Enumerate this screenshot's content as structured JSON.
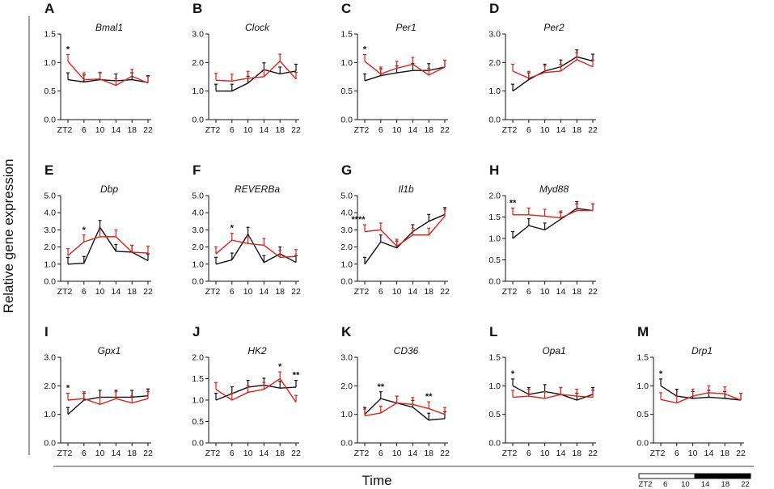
{
  "figure": {
    "ylabel": "Relative gene expression",
    "xlabel": "Time",
    "series_colors": {
      "black": "#111111",
      "red": "#e0201b"
    },
    "light_dark_bar": {
      "labels": [
        "ZT2",
        "6",
        "10",
        "14",
        "18",
        "22"
      ],
      "light_fraction": 0.5
    }
  },
  "chart_data": [
    {
      "letter": "A",
      "title": "Bmal1",
      "type": "line",
      "x": [
        2,
        6,
        10,
        14,
        18,
        22
      ],
      "xticks": [
        "ZT2",
        "6",
        "10",
        "14",
        "18",
        "22"
      ],
      "ylim": [
        0,
        1.5
      ],
      "yticks": [
        "0.0",
        "0.5",
        "1.0",
        "1.5"
      ],
      "series": [
        {
          "name": "black",
          "values": [
            0.7,
            0.66,
            0.7,
            0.68,
            0.7,
            0.65
          ]
        },
        {
          "name": "red",
          "values": [
            1.02,
            0.7,
            0.71,
            0.6,
            0.76,
            0.64
          ]
        }
      ],
      "sig": [
        {
          "x": 2,
          "text": "*"
        }
      ]
    },
    {
      "letter": "B",
      "title": "Clock",
      "type": "line",
      "x": [
        2,
        6,
        10,
        14,
        18,
        22
      ],
      "xticks": [
        "ZT2",
        "6",
        "10",
        "14",
        "18",
        "22"
      ],
      "ylim": [
        0,
        3.0
      ],
      "yticks": [
        "0.0",
        "1.0",
        "2.0",
        "3.0"
      ],
      "series": [
        {
          "name": "black",
          "values": [
            1.0,
            1.0,
            1.28,
            1.75,
            1.6,
            1.7
          ]
        },
        {
          "name": "red",
          "values": [
            1.38,
            1.35,
            1.45,
            1.5,
            2.05,
            1.42
          ]
        }
      ],
      "sig": []
    },
    {
      "letter": "C",
      "title": "Per1",
      "type": "line",
      "x": [
        2,
        6,
        10,
        14,
        18,
        22
      ],
      "xticks": [
        "ZT2",
        "6",
        "10",
        "14",
        "18",
        "22"
      ],
      "ylim": [
        0,
        1.5
      ],
      "yticks": [
        "0.0",
        "0.5",
        "1.0",
        "1.5"
      ],
      "series": [
        {
          "name": "black",
          "values": [
            0.68,
            0.77,
            0.82,
            0.86,
            0.86,
            0.92
          ]
        },
        {
          "name": "red",
          "values": [
            1.02,
            0.8,
            0.9,
            0.97,
            0.78,
            0.92
          ]
        }
      ],
      "sig": [
        {
          "x": 2,
          "text": "*"
        }
      ]
    },
    {
      "letter": "D",
      "title": "Per2",
      "type": "line",
      "x": [
        2,
        6,
        10,
        14,
        18,
        22
      ],
      "xticks": [
        "ZT2",
        "6",
        "10",
        "14",
        "18",
        "22"
      ],
      "ylim": [
        0,
        3.0
      ],
      "yticks": [
        "0.0",
        "1.0",
        "2.0",
        "3.0"
      ],
      "series": [
        {
          "name": "black",
          "values": [
            1.0,
            1.4,
            1.7,
            1.85,
            2.2,
            2.05
          ]
        },
        {
          "name": "red",
          "values": [
            1.7,
            1.45,
            1.65,
            1.7,
            2.1,
            1.85
          ]
        }
      ],
      "sig": []
    },
    {
      "letter": "E",
      "title": "Dbp",
      "type": "line",
      "x": [
        2,
        6,
        10,
        14,
        18,
        22
      ],
      "xticks": [
        "ZT2",
        "6",
        "10",
        "14",
        "18",
        "22"
      ],
      "ylim": [
        0,
        5.0
      ],
      "yticks": [
        "0.0",
        "1.0",
        "2.0",
        "3.0",
        "4.0",
        "5.0"
      ],
      "series": [
        {
          "name": "black",
          "values": [
            1.0,
            1.05,
            3.15,
            1.75,
            1.7,
            1.2
          ]
        },
        {
          "name": "red",
          "values": [
            1.5,
            2.3,
            2.6,
            2.6,
            1.7,
            1.65
          ]
        }
      ],
      "sig": [
        {
          "x": 6,
          "text": "*"
        }
      ]
    },
    {
      "letter": "F",
      "title": "REVERBa",
      "type": "line",
      "x": [
        2,
        6,
        10,
        14,
        18,
        22
      ],
      "xticks": [
        "ZT2",
        "6",
        "10",
        "14",
        "18",
        "22"
      ],
      "ylim": [
        0,
        5.0
      ],
      "yticks": [
        "0.0",
        "1.0",
        "2.0",
        "3.0",
        "4.0",
        "5.0"
      ],
      "series": [
        {
          "name": "black",
          "values": [
            1.0,
            1.25,
            2.75,
            1.1,
            1.6,
            1.1
          ]
        },
        {
          "name": "red",
          "values": [
            1.6,
            2.4,
            2.2,
            2.1,
            1.4,
            1.45
          ]
        }
      ],
      "sig": [
        {
          "x": 6,
          "text": "*"
        }
      ]
    },
    {
      "letter": "G",
      "title": "Il1b",
      "type": "line",
      "x": [
        2,
        6,
        10,
        14,
        18,
        22
      ],
      "xticks": [
        "ZT2",
        "6",
        "10",
        "14",
        "18",
        "22"
      ],
      "ylim": [
        0,
        5.0
      ],
      "yticks": [
        "0.0",
        "1.0",
        "2.0",
        "3.0",
        "4.0",
        "5.0"
      ],
      "series": [
        {
          "name": "black",
          "values": [
            1.0,
            2.3,
            1.95,
            2.9,
            3.5,
            3.9
          ]
        },
        {
          "name": "red",
          "values": [
            2.9,
            3.0,
            2.05,
            2.7,
            2.7,
            3.8
          ]
        }
      ],
      "sig": [
        {
          "x": 2,
          "text": "****"
        }
      ]
    },
    {
      "letter": "H",
      "title": "Myd88",
      "type": "line",
      "x": [
        2,
        6,
        10,
        14,
        18,
        22
      ],
      "xticks": [
        "ZT2",
        "6",
        "10",
        "14",
        "18",
        "22"
      ],
      "ylim": [
        0,
        2.0
      ],
      "yticks": [
        "0.0",
        "0.5",
        "1.0",
        "1.5",
        "2.0"
      ],
      "series": [
        {
          "name": "black",
          "values": [
            1.0,
            1.3,
            1.2,
            1.45,
            1.7,
            1.65
          ]
        },
        {
          "name": "red",
          "values": [
            1.55,
            1.55,
            1.52,
            1.48,
            1.65,
            1.65
          ]
        }
      ],
      "sig": [
        {
          "x": 2,
          "text": "**"
        }
      ]
    },
    {
      "letter": "I",
      "title": "Gpx1",
      "type": "line",
      "x": [
        2,
        6,
        10,
        14,
        18,
        22
      ],
      "xticks": [
        "ZT2",
        "6",
        "10",
        "14",
        "18",
        "22"
      ],
      "ylim": [
        0,
        3.0
      ],
      "yticks": [
        "0.0",
        "1.0",
        "2.0",
        "3.0"
      ],
      "series": [
        {
          "name": "black",
          "values": [
            1.0,
            1.5,
            1.6,
            1.6,
            1.6,
            1.65
          ]
        },
        {
          "name": "red",
          "values": [
            1.5,
            1.55,
            1.35,
            1.55,
            1.4,
            1.55
          ]
        }
      ],
      "sig": [
        {
          "x": 2,
          "text": "*"
        }
      ]
    },
    {
      "letter": "J",
      "title": "HK2",
      "type": "line",
      "x": [
        2,
        6,
        10,
        14,
        18,
        22
      ],
      "xticks": [
        "ZT2",
        "6",
        "10",
        "14",
        "18",
        "22"
      ],
      "ylim": [
        0,
        2.0
      ],
      "yticks": [
        "0.0",
        "0.5",
        "1.0",
        "1.5",
        "2.0"
      ],
      "series": [
        {
          "name": "black",
          "values": [
            1.0,
            1.15,
            1.3,
            1.35,
            1.28,
            1.3
          ]
        },
        {
          "name": "red",
          "values": [
            1.25,
            1.0,
            1.18,
            1.25,
            1.5,
            0.95
          ]
        }
      ],
      "sig": [
        {
          "x": 18,
          "text": "*"
        },
        {
          "x": 22,
          "text": "**"
        }
      ]
    },
    {
      "letter": "K",
      "title": "CD36",
      "type": "line",
      "x": [
        2,
        6,
        10,
        14,
        18,
        22
      ],
      "xticks": [
        "ZT2",
        "6",
        "10",
        "14",
        "18",
        "22"
      ],
      "ylim": [
        0,
        3.0
      ],
      "yticks": [
        "0.0",
        "1.0",
        "2.0",
        "3.0"
      ],
      "series": [
        {
          "name": "black",
          "values": [
            1.0,
            1.55,
            1.4,
            1.25,
            0.8,
            0.85
          ]
        },
        {
          "name": "red",
          "values": [
            0.95,
            1.05,
            1.4,
            1.35,
            1.2,
            1.0
          ]
        }
      ],
      "sig": [
        {
          "x": 6,
          "text": "**"
        },
        {
          "x": 18,
          "text": "**"
        }
      ]
    },
    {
      "letter": "L",
      "title": "Opa1",
      "type": "line",
      "x": [
        2,
        6,
        10,
        14,
        18,
        22
      ],
      "xticks": [
        "ZT2",
        "6",
        "10",
        "14",
        "18",
        "22"
      ],
      "ylim": [
        0,
        1.5
      ],
      "yticks": [
        "0.0",
        "0.5",
        "1.0",
        "1.5"
      ],
      "series": [
        {
          "name": "black",
          "values": [
            1.0,
            0.85,
            0.9,
            0.85,
            0.75,
            0.85
          ]
        },
        {
          "name": "red",
          "values": [
            0.8,
            0.82,
            0.78,
            0.85,
            0.82,
            0.8
          ]
        }
      ],
      "sig": [
        {
          "x": 2,
          "text": "*"
        }
      ]
    },
    {
      "letter": "M",
      "title": "Drp1",
      "type": "line",
      "x": [
        2,
        6,
        10,
        14,
        18,
        22
      ],
      "xticks": [
        "ZT2",
        "6",
        "10",
        "14",
        "18",
        "22"
      ],
      "ylim": [
        0,
        1.5
      ],
      "yticks": [
        "0.0",
        "0.5",
        "1.0",
        "1.5"
      ],
      "series": [
        {
          "name": "black",
          "values": [
            1.0,
            0.82,
            0.78,
            0.8,
            0.78,
            0.75
          ]
        },
        {
          "name": "red",
          "values": [
            0.76,
            0.7,
            0.82,
            0.88,
            0.86,
            0.75
          ]
        }
      ],
      "sig": [
        {
          "x": 2,
          "text": "*"
        }
      ]
    }
  ]
}
